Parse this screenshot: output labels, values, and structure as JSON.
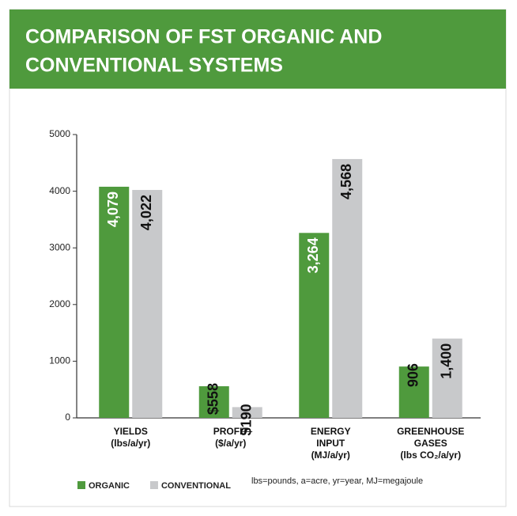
{
  "chart_data": {
    "type": "bar",
    "title": [
      "COMPARISON OF FST ORGANIC AND",
      "CONVENTIONAL SYSTEMS"
    ],
    "categories": [
      [
        "YIELDS",
        "(lbs/a/yr)"
      ],
      [
        "PROFIT",
        "($/a/yr)"
      ],
      [
        "ENERGY",
        "INPUT",
        "(MJ/a/yr)"
      ],
      [
        "GREENHOUSE",
        "GASES",
        "(lbs CO₂/a/yr)"
      ]
    ],
    "series": [
      {
        "name": "ORGANIC",
        "color": "#4f9a3d",
        "values": [
          4079,
          558,
          3264,
          906
        ],
        "value_labels": [
          "4,079",
          "$558",
          "3,264",
          "906"
        ]
      },
      {
        "name": "CONVENTIONAL",
        "color": "#c8c9cb",
        "values": [
          4022,
          190,
          4568,
          1400
        ],
        "value_labels": [
          "4,022",
          "$190",
          "4,568",
          "1,400"
        ]
      }
    ],
    "ylim": [
      0,
      5000
    ],
    "yticks": [
      0,
      1000,
      2000,
      3000,
      4000,
      5000
    ],
    "legend": "bottom-left",
    "note": "lbs=pounds, a=acre, yr=year, MJ=megajoule"
  }
}
